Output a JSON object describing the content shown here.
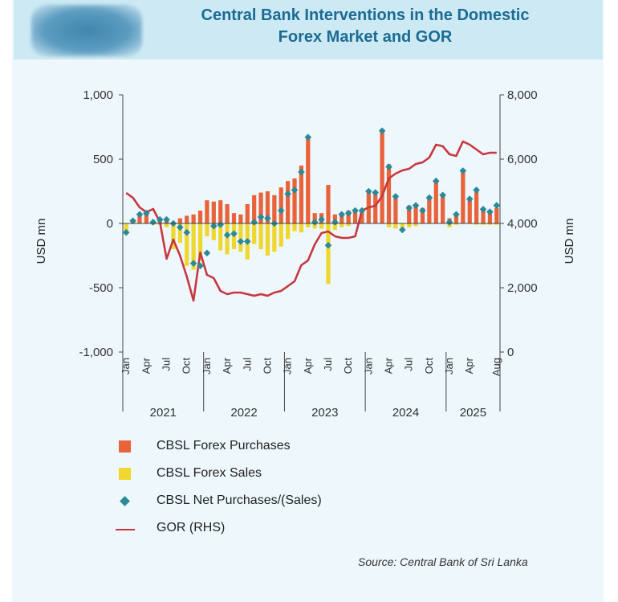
{
  "title_line1": "Central Bank Interventions in the Domestic",
  "title_line2": "Forex Market and GOR",
  "source": "Source: Central Bank of Sri Lanka",
  "colors": {
    "purchases": "#e8623a",
    "sales": "#efd72e",
    "net": "#2a8a9a",
    "gor": "#c7373f",
    "header_bg": "#cdeaf4",
    "title": "#1b6b93"
  },
  "legend": [
    {
      "label": "CBSL Forex Purchases",
      "kind": "bar",
      "color": "#e8623a"
    },
    {
      "label": "CBSL Forex Sales",
      "kind": "bar",
      "color": "#efd72e"
    },
    {
      "label": "CBSL Net Purchases/(Sales)",
      "kind": "diamond",
      "color": "#2a8a9a"
    },
    {
      "label": "GOR (RHS)",
      "kind": "line",
      "color": "#c7373f"
    }
  ],
  "chart_data": {
    "type": "bar",
    "ylabel": "USD mn",
    "y2label": "USD mn",
    "ylim": [
      -1000,
      1000
    ],
    "y2lim": [
      0,
      8000
    ],
    "yticks": [
      "1,000",
      "500",
      "0",
      "-500",
      "-1,000"
    ],
    "y2ticks": [
      "8,000",
      "6,000",
      "4,000",
      "2,000",
      "0"
    ],
    "month_labels": [
      {
        "label": "Jan",
        "i": 0
      },
      {
        "label": "Apr",
        "i": 3
      },
      {
        "label": "Jul",
        "i": 6
      },
      {
        "label": "Oct",
        "i": 9
      },
      {
        "label": "Jan",
        "i": 12
      },
      {
        "label": "Apr",
        "i": 15
      },
      {
        "label": "Jul",
        "i": 18
      },
      {
        "label": "Oct",
        "i": 21
      },
      {
        "label": "Jan",
        "i": 24
      },
      {
        "label": "Apr",
        "i": 27
      },
      {
        "label": "Jul",
        "i": 30
      },
      {
        "label": "Oct",
        "i": 33
      },
      {
        "label": "Jan",
        "i": 36
      },
      {
        "label": "Apr",
        "i": 39
      },
      {
        "label": "Jul",
        "i": 42
      },
      {
        "label": "Oct",
        "i": 45
      },
      {
        "label": "Jan",
        "i": 48
      },
      {
        "label": "Apr",
        "i": 51
      },
      {
        "label": "Aug",
        "i": 55
      }
    ],
    "years": [
      {
        "label": "2021",
        "start": 0,
        "end": 12
      },
      {
        "label": "2022",
        "start": 12,
        "end": 24
      },
      {
        "label": "2023",
        "start": 24,
        "end": 36
      },
      {
        "label": "2024",
        "start": 36,
        "end": 48
      },
      {
        "label": "2025",
        "start": 48,
        "end": 56
      }
    ],
    "months": [
      "2021-01",
      "2021-02",
      "2021-03",
      "2021-04",
      "2021-05",
      "2021-06",
      "2021-07",
      "2021-08",
      "2021-09",
      "2021-10",
      "2021-11",
      "2021-12",
      "2022-01",
      "2022-02",
      "2022-03",
      "2022-04",
      "2022-05",
      "2022-06",
      "2022-07",
      "2022-08",
      "2022-09",
      "2022-10",
      "2022-11",
      "2022-12",
      "2023-01",
      "2023-02",
      "2023-03",
      "2023-04",
      "2023-05",
      "2023-06",
      "2023-07",
      "2023-08",
      "2023-09",
      "2023-10",
      "2023-11",
      "2023-12",
      "2024-01",
      "2024-02",
      "2024-03",
      "2024-04",
      "2024-05",
      "2024-06",
      "2024-07",
      "2024-08",
      "2024-09",
      "2024-10",
      "2024-11",
      "2024-12",
      "2025-01",
      "2025-02",
      "2025-03",
      "2025-04",
      "2025-05",
      "2025-06",
      "2025-07",
      "2025-08"
    ],
    "series": [
      {
        "name": "CBSL Forex Purchases",
        "kind": "bar",
        "values": [
          0,
          10,
          80,
          90,
          10,
          40,
          40,
          0,
          40,
          60,
          70,
          100,
          180,
          170,
          180,
          150,
          80,
          70,
          150,
          220,
          240,
          250,
          220,
          280,
          330,
          350,
          450,
          670,
          80,
          80,
          300,
          70,
          80,
          100,
          110,
          110,
          250,
          250,
          720,
          460,
          200,
          0,
          140,
          150,
          120,
          200,
          340,
          220,
          40,
          80,
          420,
          200,
          270,
          120,
          100,
          120
        ]
      },
      {
        "name": "CBSL Forex Sales",
        "kind": "bar",
        "values": [
          -60,
          0,
          0,
          0,
          -10,
          -10,
          -30,
          -200,
          -150,
          -330,
          -360,
          -290,
          -100,
          -130,
          -210,
          -240,
          -200,
          -220,
          -280,
          -160,
          -200,
          -250,
          -220,
          -180,
          -120,
          -60,
          -70,
          -30,
          -40,
          -40,
          -470,
          -50,
          -30,
          -20,
          0,
          0,
          0,
          0,
          0,
          -30,
          -40,
          -60,
          -30,
          -20,
          0,
          0,
          0,
          0,
          -30,
          -10,
          0,
          0,
          -10,
          -10,
          -10,
          -10
        ]
      },
      {
        "name": "CBSL Net Purchases/(Sales)",
        "kind": "diamond",
        "values": [
          -70,
          20,
          70,
          80,
          10,
          30,
          30,
          0,
          -30,
          -70,
          -310,
          -330,
          -230,
          -20,
          -10,
          -90,
          -80,
          -140,
          -140,
          10,
          50,
          40,
          0,
          100,
          230,
          260,
          400,
          670,
          10,
          30,
          -170,
          10,
          70,
          80,
          100,
          100,
          250,
          240,
          720,
          440,
          210,
          -50,
          120,
          140,
          100,
          200,
          330,
          220,
          10,
          70,
          410,
          190,
          260,
          110,
          90,
          140
        ]
      },
      {
        "name": "GOR (RHS)",
        "kind": "line",
        "values": [
          4.95,
          4.8,
          4.5,
          4.35,
          4.45,
          4.05,
          2.9,
          3.5,
          3.0,
          2.35,
          1.6,
          3.1,
          2.4,
          2.3,
          1.9,
          1.8,
          1.85,
          1.85,
          1.8,
          1.75,
          1.8,
          1.75,
          1.85,
          1.9,
          2.05,
          2.2,
          2.7,
          2.85,
          3.35,
          3.7,
          3.75,
          3.6,
          3.55,
          3.55,
          3.6,
          4.4,
          4.5,
          4.55,
          4.85,
          5.4,
          5.55,
          5.65,
          5.7,
          5.85,
          5.9,
          6.05,
          6.45,
          6.4,
          6.15,
          6.1,
          6.55,
          6.45,
          6.3,
          6.15,
          6.2,
          6.2
        ]
      }
    ]
  }
}
